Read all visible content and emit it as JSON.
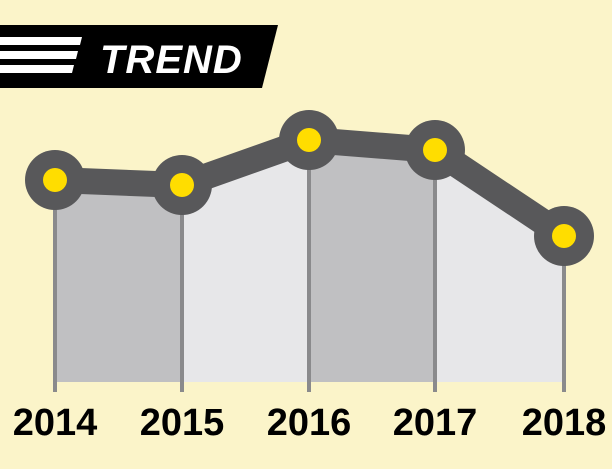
{
  "chart_data": {
    "type": "area",
    "title": "TREND",
    "categories": [
      "2014",
      "2015",
      "2016",
      "2017",
      "2018"
    ],
    "values": [
      180,
      185,
      140,
      150,
      236
    ],
    "y_axis_inverted_note": "",
    "ylim": [
      0,
      400
    ],
    "grid": false,
    "legend": "none"
  },
  "colors": {
    "background": "#fbf4c9",
    "banner": "#000000",
    "banner_text": "#ffffff",
    "line": "#58585a",
    "marker_fill": "#ffdd00",
    "area_dark": "#c0c0c2",
    "area_light": "#e7e7e9",
    "vertical_lines": "#8a8a8c",
    "tick_text": "#000000"
  }
}
